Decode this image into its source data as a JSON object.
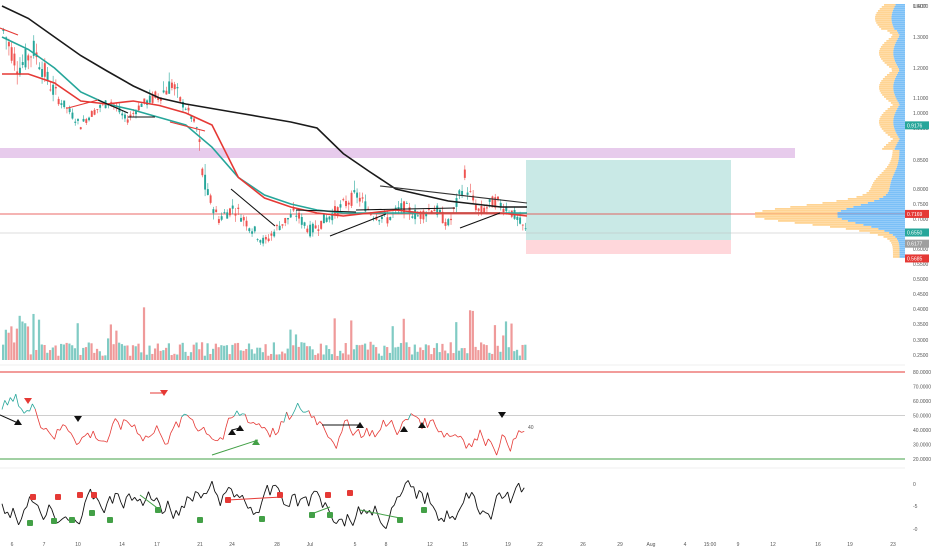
{
  "chart_data": {
    "type": "candlestick",
    "price_axis": {
      "unit": "USDT",
      "ticks": [
        "1.4000",
        "1.3000",
        "1.2000",
        "1.1000",
        "1.0000",
        "0.9000",
        "0.8500",
        "0.8000",
        "0.7500",
        "0.7000",
        "0.6500",
        "0.6000",
        "0.5500",
        "0.5000",
        "0.4500",
        "0.4000",
        "0.3500",
        "0.3000",
        "0.2500"
      ],
      "ylim": [
        0.24,
        1.45
      ],
      "price_tags": [
        {
          "text": "0.9176",
          "value": 0.9176,
          "color": "#26a69a"
        },
        {
          "text": "0.7169",
          "value": 0.7169,
          "color": "#e53935"
        },
        {
          "text": "0.6550",
          "value": 0.655,
          "color": "#26a69a"
        },
        {
          "text": "0.6177",
          "value": 0.6177,
          "color": "#9e9e9e"
        },
        {
          "text": "0.5685",
          "value": 0.5685,
          "color": "#e53935"
        }
      ]
    },
    "time_axis": {
      "ticks": [
        "6",
        "7",
        "10",
        "14",
        "17",
        "21",
        "24",
        "28",
        "Jul",
        "5",
        "8",
        "12",
        "15",
        "19",
        "22",
        "26",
        "29",
        "Aug",
        "4",
        "15:00",
        "9",
        "12",
        "16",
        "19",
        "23"
      ]
    },
    "close_series": [
      {
        "d": 0,
        "o": 1.29,
        "c": 1.32
      },
      {
        "d": 1,
        "o": 1.32,
        "c": 1.2
      },
      {
        "d": 2,
        "o": 1.2,
        "c": 1.26
      },
      {
        "d": 3,
        "o": 1.26,
        "c": 1.15
      },
      {
        "d": 4,
        "o": 1.15,
        "c": 1.05
      },
      {
        "d": 5,
        "o": 1.05,
        "c": 0.92
      },
      {
        "d": 6,
        "o": 0.92,
        "c": 1.02
      },
      {
        "d": 7,
        "o": 1.02,
        "c": 1.08
      },
      {
        "d": 8,
        "o": 1.08,
        "c": 0.95
      },
      {
        "d": 9,
        "o": 0.95,
        "c": 1.06
      },
      {
        "d": 10,
        "o": 1.06,
        "c": 1.1
      },
      {
        "d": 11,
        "o": 1.1,
        "c": 1.15
      },
      {
        "d": 12,
        "o": 1.15,
        "c": 1.02
      },
      {
        "d": 13,
        "o": 1.02,
        "c": 0.82
      },
      {
        "d": 14,
        "o": 0.82,
        "c": 0.7
      },
      {
        "d": 15,
        "o": 0.7,
        "c": 0.74
      },
      {
        "d": 16,
        "o": 0.74,
        "c": 0.68
      },
      {
        "d": 17,
        "o": 0.68,
        "c": 0.62
      },
      {
        "d": 18,
        "o": 0.62,
        "c": 0.68
      },
      {
        "d": 19,
        "o": 0.68,
        "c": 0.72
      },
      {
        "d": 20,
        "o": 0.72,
        "c": 0.66
      },
      {
        "d": 21,
        "o": 0.66,
        "c": 0.7
      },
      {
        "d": 22,
        "o": 0.7,
        "c": 0.74
      },
      {
        "d": 23,
        "o": 0.74,
        "c": 0.78
      },
      {
        "d": 24,
        "o": 0.78,
        "c": 0.72
      },
      {
        "d": 25,
        "o": 0.72,
        "c": 0.7
      },
      {
        "d": 26,
        "o": 0.7,
        "c": 0.74
      },
      {
        "d": 27,
        "o": 0.74,
        "c": 0.71
      },
      {
        "d": 28,
        "o": 0.71,
        "c": 0.74
      },
      {
        "d": 29,
        "o": 0.74,
        "c": 0.68
      },
      {
        "d": 30,
        "o": 0.68,
        "c": 0.82
      },
      {
        "d": 31,
        "o": 0.82,
        "c": 0.72
      },
      {
        "d": 32,
        "o": 0.72,
        "c": 0.76
      },
      {
        "d": 33,
        "o": 0.76,
        "c": 0.73
      },
      {
        "d": 34,
        "o": 0.73,
        "c": 0.66
      }
    ],
    "moving_averages": [
      {
        "color": "#1a1a1a",
        "values": [
          1.42,
          1.36,
          1.3,
          1.24,
          1.19,
          1.14,
          1.1,
          1.06,
          1.03,
          1.0,
          0.97,
          0.94,
          0.9,
          0.86,
          0.83,
          0.8,
          0.78,
          0.76,
          0.75,
          0.74,
          0.74
        ]
      },
      {
        "color": "#26a69a",
        "values": [
          1.3,
          1.26,
          1.2,
          1.12,
          1.06,
          1.02,
          0.97,
          0.92,
          0.87,
          0.82,
          0.78,
          0.75,
          0.73,
          0.72,
          0.72,
          0.72,
          0.72,
          0.72,
          0.72,
          0.72,
          0.72
        ]
      },
      {
        "color": "#e53935",
        "values": [
          1.18,
          1.18,
          1.15,
          1.08,
          1.06,
          1.08,
          1.05,
          1.0,
          0.92,
          0.82,
          0.77,
          0.74,
          0.72,
          0.71,
          0.72,
          0.73,
          0.72,
          0.72,
          0.72,
          0.72,
          0.71
        ]
      }
    ],
    "zones": [
      {
        "name": "supply-zone",
        "from": 0.905,
        "to": 0.93,
        "color": "#e1bee7"
      },
      {
        "name": "profit-zone",
        "from": 0.655,
        "to": 0.895,
        "color": "#b2dfdb"
      },
      {
        "name": "loss-zone",
        "from": 0.5685,
        "to": 0.62,
        "color": "#ffcdd2"
      }
    ],
    "rsi": {
      "ticks": [
        "80.0000",
        "70.0000",
        "60.0000",
        "50.0000",
        "40.0000",
        "30.0000",
        "20.0000"
      ],
      "levels": [
        {
          "value": 80,
          "color": "#e53935"
        },
        {
          "value": 50,
          "color": "#9e9e9e"
        },
        {
          "value": 20,
          "color": "#43a047"
        }
      ],
      "last_label": "40"
    },
    "oscillator": {
      "ticks": [
        "0",
        "-5",
        "-0"
      ]
    }
  }
}
